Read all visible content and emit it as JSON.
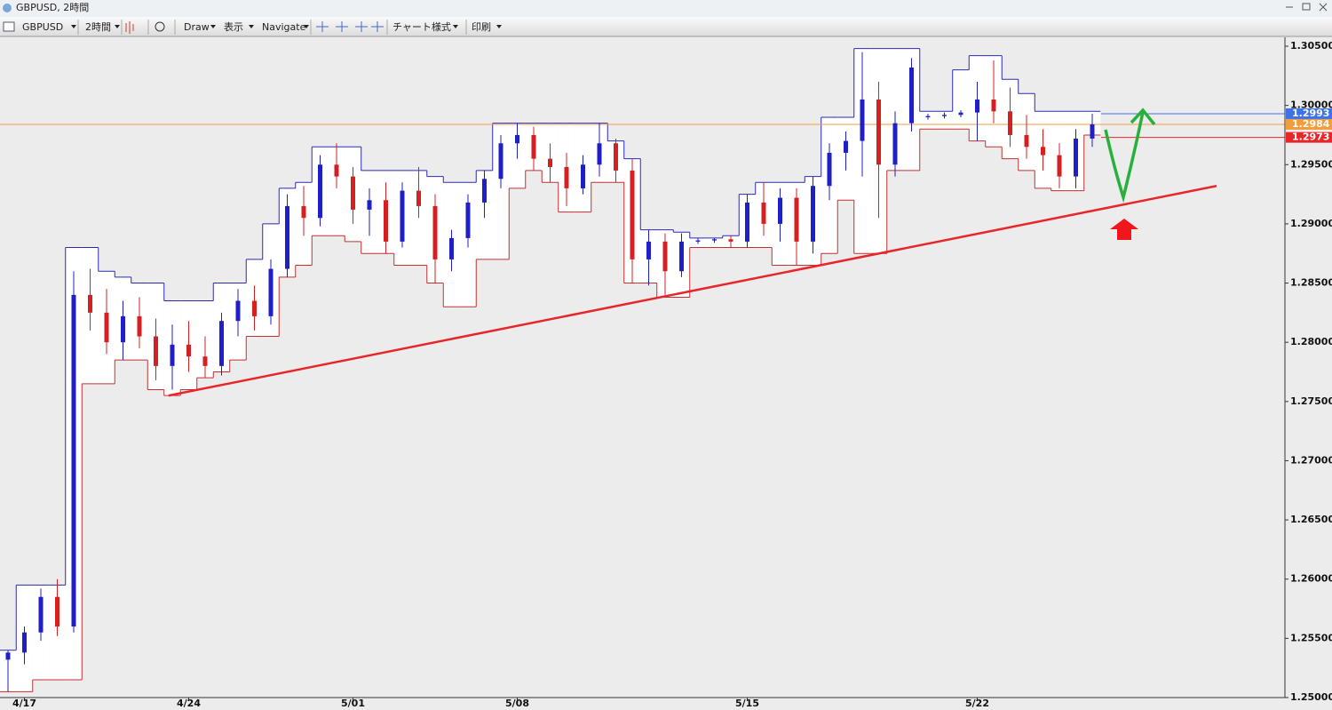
{
  "window": {
    "title": "GBPUSD, 2時間",
    "toolbar": [
      "GBPUSD",
      "2時間",
      "Draw",
      "表示",
      "Navigate",
      "チャート様式",
      "印刷"
    ]
  },
  "chart_data": {
    "type": "candlestick",
    "categories": [
      null,
      "4/17",
      null,
      null,
      null,
      null,
      null,
      null,
      null,
      null,
      null,
      "4/24",
      null,
      null,
      null,
      null,
      null,
      null,
      null,
      null,
      null,
      "5/01",
      null,
      null,
      null,
      null,
      null,
      null,
      null,
      null,
      null,
      "5/08",
      null,
      null,
      null,
      null,
      null,
      null,
      null,
      null,
      null,
      null,
      null,
      null,
      null,
      "5/15",
      null,
      null,
      null,
      null,
      null,
      null,
      null,
      null,
      null,
      null,
      null,
      null,
      null,
      "5/22",
      null,
      null,
      null,
      null,
      null,
      null,
      null
    ],
    "open": [
      1.2532,
      1.2538,
      1.2555,
      1.2585,
      1.256,
      1.284,
      1.2825,
      1.28,
      1.2822,
      1.2805,
      1.278,
      1.2798,
      1.2788,
      1.278,
      1.2818,
      1.2835,
      1.2822,
      1.2862,
      1.2915,
      1.2905,
      1.295,
      1.294,
      1.2912,
      1.292,
      1.2885,
      1.2928,
      1.2915,
      1.287,
      1.2888,
      1.2918,
      1.2938,
      1.2968,
      1.2975,
      1.2955,
      1.2948,
      1.293,
      1.295,
      1.2968,
      1.2945,
      1.287,
      1.2885,
      1.286,
      1.2885,
      1.2886,
      1.2887,
      1.2885,
      1.2918,
      1.29,
      1.2922,
      1.2885,
      1.2932,
      1.296,
      1.297,
      1.3005,
      1.295,
      1.2985,
      1.299,
      1.2991,
      1.2992,
      1.2994,
      1.3005,
      1.2995,
      1.2975,
      1.2965,
      1.2958,
      1.294,
      1.2972
    ],
    "high": [
      1.254,
      1.256,
      1.2592,
      1.26,
      1.286,
      1.2862,
      1.2845,
      1.2835,
      1.2838,
      1.282,
      1.2815,
      1.2818,
      1.2805,
      1.2825,
      1.2845,
      1.2848,
      1.287,
      1.2925,
      1.2932,
      1.2958,
      1.2968,
      1.2948,
      1.293,
      1.2935,
      1.2935,
      1.2948,
      1.2925,
      1.2895,
      1.2925,
      1.2945,
      1.2975,
      1.2985,
      1.2982,
      1.2968,
      1.296,
      1.2958,
      1.2985,
      1.2972,
      1.2955,
      1.2895,
      1.2892,
      1.2892,
      1.2888,
      1.2888,
      1.289,
      1.2925,
      1.2935,
      1.293,
      1.293,
      1.294,
      1.2968,
      1.2978,
      1.3045,
      1.302,
      1.2995,
      1.304,
      1.2993,
      1.2994,
      1.2996,
      1.302,
      1.3038,
      1.3015,
      1.2992,
      1.298,
      1.2968,
      1.298,
      1.2993
    ],
    "low": [
      1.2505,
      1.2528,
      1.2548,
      1.2552,
      1.2555,
      1.281,
      1.279,
      1.2785,
      1.2795,
      1.2768,
      1.276,
      1.2775,
      1.277,
      1.2772,
      1.2805,
      1.281,
      1.2815,
      1.2855,
      1.289,
      1.2898,
      1.293,
      1.29,
      1.289,
      1.2875,
      1.288,
      1.2905,
      1.285,
      1.286,
      1.288,
      1.2905,
      1.293,
      1.2955,
      1.2945,
      1.2935,
      1.2915,
      1.2925,
      1.294,
      1.2935,
      1.285,
      1.2848,
      1.284,
      1.2855,
      1.2883,
      1.2884,
      1.288,
      1.288,
      1.289,
      1.2885,
      1.2865,
      1.2875,
      1.292,
      1.2945,
      1.294,
      1.2905,
      1.294,
      1.2978,
      1.2988,
      1.2989,
      1.299,
      1.297,
      1.2985,
      1.2965,
      1.2955,
      1.2945,
      1.293,
      1.293,
      1.2965
    ],
    "close": [
      1.2538,
      1.2555,
      1.2585,
      1.256,
      1.284,
      1.2825,
      1.28,
      1.2822,
      1.2805,
      1.278,
      1.2798,
      1.2788,
      1.278,
      1.2818,
      1.2835,
      1.2822,
      1.2862,
      1.2915,
      1.2905,
      1.295,
      1.294,
      1.2912,
      1.292,
      1.2885,
      1.2928,
      1.2915,
      1.287,
      1.2888,
      1.2918,
      1.2938,
      1.2968,
      1.2975,
      1.2955,
      1.2948,
      1.293,
      1.295,
      1.2968,
      1.2945,
      1.287,
      1.2885,
      1.286,
      1.2885,
      1.2886,
      1.2887,
      1.2885,
      1.2918,
      1.29,
      1.2922,
      1.2885,
      1.2932,
      1.296,
      1.297,
      1.3005,
      1.295,
      1.2985,
      1.3032,
      1.2991,
      1.2992,
      1.2994,
      1.3005,
      1.2995,
      1.2975,
      1.2965,
      1.2958,
      1.294,
      1.2972,
      1.2984
    ],
    "up_color": "#1f1fc8",
    "down_color": "#d42020",
    "channel_upper": [
      1.254,
      1.2595,
      1.2595,
      1.2595,
      1.288,
      1.288,
      1.286,
      1.2855,
      1.285,
      1.285,
      1.2835,
      1.2835,
      1.2835,
      1.285,
      1.285,
      1.287,
      1.29,
      1.293,
      1.2935,
      1.2965,
      1.2965,
      1.2965,
      1.2945,
      1.2945,
      1.2945,
      1.2945,
      1.294,
      1.2935,
      1.2935,
      1.2945,
      1.2985,
      1.2985,
      1.2985,
      1.2985,
      1.2985,
      1.2985,
      1.2985,
      1.297,
      1.2955,
      1.2895,
      1.2895,
      1.2893,
      1.2888,
      1.2888,
      1.289,
      1.2925,
      1.2935,
      1.2935,
      1.2935,
      1.294,
      1.299,
      1.299,
      1.3048,
      1.3048,
      1.3048,
      1.3048,
      1.2995,
      1.2995,
      1.303,
      1.3042,
      1.3042,
      1.3022,
      1.301,
      1.2995,
      1.2995,
      1.2995,
      1.2995
    ],
    "channel_lower": [
      1.2505,
      1.2505,
      1.2515,
      1.2515,
      1.2515,
      1.2765,
      1.2765,
      1.2785,
      1.2785,
      1.276,
      1.2755,
      1.276,
      1.277,
      1.2775,
      1.2785,
      1.2805,
      1.2805,
      1.2855,
      1.2865,
      1.289,
      1.289,
      1.2885,
      1.2875,
      1.2875,
      1.2865,
      1.2865,
      1.285,
      1.283,
      1.283,
      1.287,
      1.287,
      1.293,
      1.2945,
      1.2935,
      1.291,
      1.291,
      1.2935,
      1.2935,
      1.285,
      1.285,
      1.2838,
      1.2838,
      1.288,
      1.288,
      1.288,
      1.288,
      1.288,
      1.2865,
      1.2865,
      1.2865,
      1.2875,
      1.292,
      1.2875,
      1.2875,
      1.2945,
      1.2945,
      1.298,
      1.298,
      1.298,
      1.297,
      1.2965,
      1.2955,
      1.2945,
      1.293,
      1.2928,
      1.2928,
      1.2975
    ],
    "upper_color": "#2a2ab0",
    "lower_color": "#c03030",
    "price_lines": [
      {
        "value": 1.2993,
        "color": "#3d72e8"
      },
      {
        "value": 1.2984,
        "color": "#f39c3c"
      },
      {
        "value": 1.2973,
        "color": "#e8262a"
      }
    ],
    "trendline": {
      "values": [
        1.2755,
        1.2932
      ],
      "color": "#e8262a"
    },
    "ylim": [
      1.25,
      1.30575
    ],
    "yticks": [
      {
        "value": 1.25,
        "label": "1.25000"
      },
      {
        "value": 1.255,
        "label": "1.25500"
      },
      {
        "value": 1.26,
        "label": "1.26000"
      },
      {
        "value": 1.265,
        "label": "1.26500"
      },
      {
        "value": 1.27,
        "label": "1.27000"
      },
      {
        "value": 1.275,
        "label": "1.27500"
      },
      {
        "value": 1.28,
        "label": "1.28000"
      },
      {
        "value": 1.285,
        "label": "1.28500"
      },
      {
        "value": 1.29,
        "label": "1.29000"
      },
      {
        "value": 1.295,
        "label": "1.29500"
      },
      {
        "value": 1.3,
        "label": "1.30000"
      },
      {
        "value": 1.305,
        "label": "1.30500"
      }
    ]
  }
}
